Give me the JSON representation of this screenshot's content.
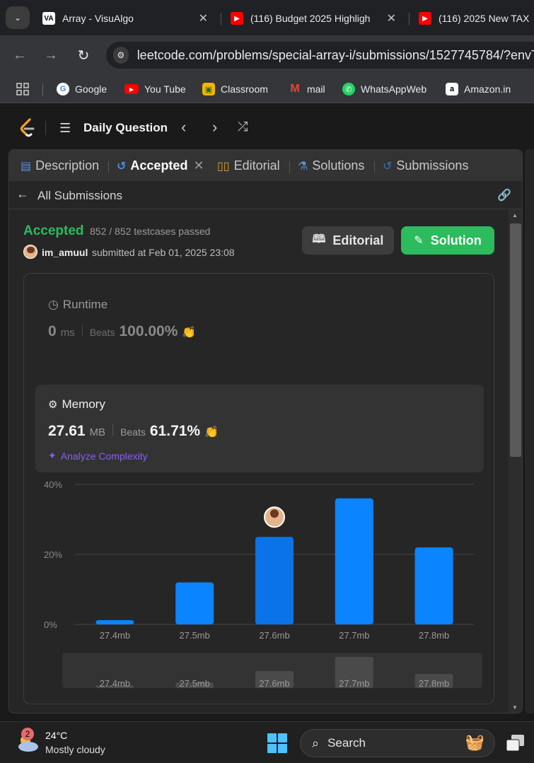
{
  "browser": {
    "tabs": [
      {
        "title": "Array - VisuAlgo",
        "icon": "VA"
      },
      {
        "title": "(116) Budget 2025 Highligh",
        "icon": "youtube"
      },
      {
        "title": "(116) 2025 New TAX",
        "icon": "youtube"
      }
    ],
    "url": "leetcode.com/problems/special-array-i/submissions/1527745784/?envTy",
    "bookmarks": [
      "Google",
      "You Tube",
      "Classroom",
      "mail",
      "WhatsAppWeb",
      "Amazon.in"
    ]
  },
  "header": {
    "title": "Daily Question"
  },
  "panel_tabs": [
    "Description",
    "Accepted",
    "Editorial",
    "Solutions",
    "Submissions"
  ],
  "subbar": {
    "back_label": "All Submissions"
  },
  "result": {
    "status": "Accepted",
    "testcases": "852 / 852 testcases passed",
    "username": "im_amuul",
    "submitted": "submitted at Feb 01, 2025 23:08",
    "editorial_btn": "Editorial",
    "solution_btn": "Solution"
  },
  "runtime": {
    "label": "Runtime",
    "value": "0",
    "unit": "ms",
    "beats_label": "Beats",
    "beats": "100.00%"
  },
  "memory": {
    "label": "Memory",
    "value": "27.61",
    "unit": "MB",
    "beats_label": "Beats",
    "beats": "61.71%",
    "analyze": "Analyze Complexity"
  },
  "chart_data": {
    "type": "bar",
    "categories": [
      "27.4mb",
      "27.5mb",
      "27.6mb",
      "27.7mb",
      "27.8mb"
    ],
    "values": [
      1.2,
      12,
      25,
      36,
      22
    ],
    "yticks": [
      "0%",
      "20%",
      "40%"
    ],
    "ylim": [
      0,
      40
    ],
    "highlight_index": 2,
    "bar_color": "#0a84ff",
    "highlight_color": "#0a73e8",
    "overview_values": [
      2,
      4,
      12,
      22,
      10
    ]
  },
  "taskbar": {
    "temperature": "24°C",
    "weather": "Mostly cloudy",
    "badge": "2",
    "search": "Search"
  }
}
